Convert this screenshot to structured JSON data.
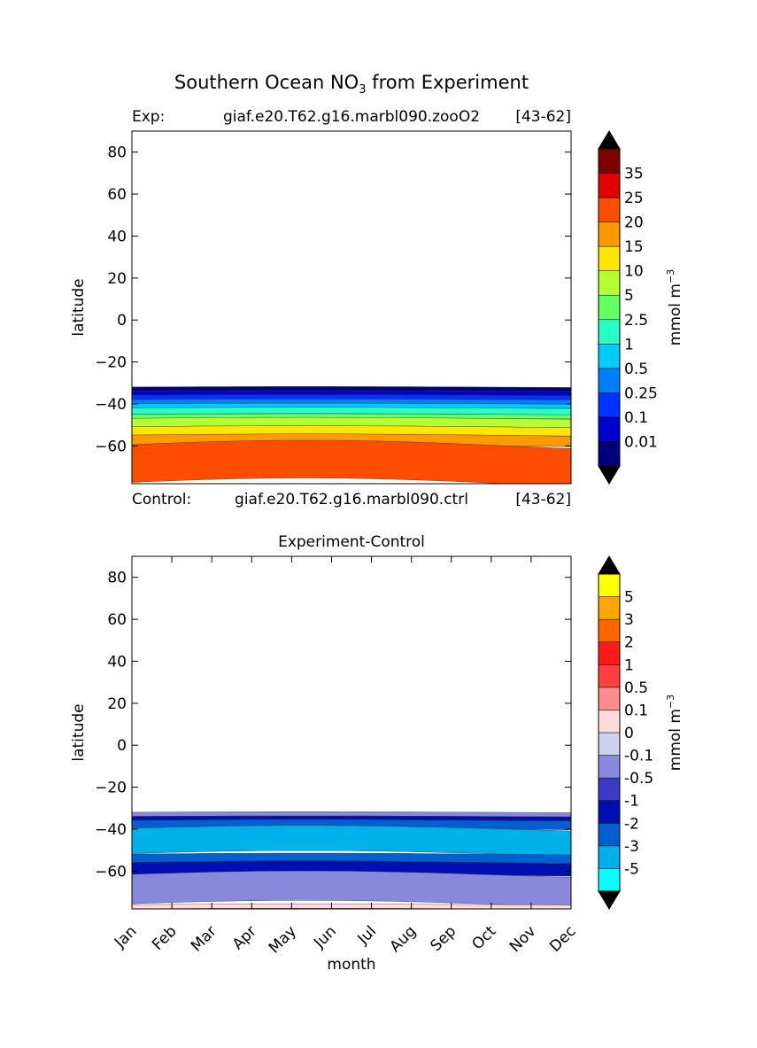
{
  "figure": {
    "title_main": "Southern Ocean NO",
    "title_sub": "3",
    "title_rest": " from Experiment"
  },
  "colors": {
    "exp_palette": [
      "#00007f",
      "#0000cc",
      "#0033ff",
      "#0080ff",
      "#00ccff",
      "#26ffc6",
      "#66ff66",
      "#b3ff33",
      "#ffe600",
      "#ff9900",
      "#ff4d00",
      "#e00000",
      "#7f0000"
    ],
    "diff_palette": [
      "#00ffff",
      "#00b0e8",
      "#0060d0",
      "#0010b0",
      "#3a3ac8",
      "#8888dd",
      "#d0d0f0",
      "#ffdada",
      "#ff8c8c",
      "#ff4040",
      "#ff1a1a",
      "#ff6600",
      "#ffa500",
      "#ffff00"
    ],
    "extend_low": "#000000",
    "extend_high": "#000000"
  },
  "chart_data": [
    {
      "type": "heatmap",
      "name": "experiment",
      "header_left": "Exp:",
      "header_center": "giaf.e20.T62.g16.marbl090.zooO2",
      "header_right": "[43-62]",
      "footer_left": "Control:",
      "footer_center": "giaf.e20.T62.g16.marbl090.ctrl",
      "footer_right": "[43-62]",
      "ylabel": "latitude",
      "ylim": [
        -78,
        90
      ],
      "xlim": [
        0,
        11
      ],
      "yticks": [
        80,
        60,
        40,
        20,
        0,
        -20,
        -40,
        -60
      ],
      "ytick_labels": [
        "80",
        "60",
        "40",
        "20",
        "0",
        "−20",
        "−40",
        "−60"
      ],
      "colorbar_levels": [
        "0.01",
        "0.1",
        "0.25",
        "0.5",
        "1",
        "2.5",
        "5",
        "10",
        "15",
        "20",
        "25",
        "35"
      ],
      "colorbar_label": "mmol m",
      "colorbar_label_sup": "−3",
      "data_extent_lat": [
        -78,
        -32
      ],
      "bands": [
        {
          "level": 0,
          "ymin": -34,
          "ymax": -32
        },
        {
          "level": 1,
          "ymin": -36,
          "ymax": -34
        },
        {
          "level": 2,
          "ymin": -38,
          "ymax": -36
        },
        {
          "level": 3,
          "ymin": -40,
          "ymax": -38
        },
        {
          "level": 4,
          "ymin": -42,
          "ymax": -40
        },
        {
          "level": 5,
          "ymin": -45,
          "ymax": -42
        },
        {
          "level": 6,
          "ymin": -47,
          "ymax": -45
        },
        {
          "level": 7,
          "ymin": -51,
          "ymax": -47
        },
        {
          "level": 8,
          "ymin": -55,
          "ymax": -51
        },
        {
          "level": 9,
          "ymin": -60,
          "ymax": -55
        },
        {
          "level": 10,
          "ymin": -78,
          "ymax": -60
        }
      ]
    },
    {
      "type": "heatmap",
      "name": "difference",
      "title": "Experiment-Control",
      "xlabel": "month",
      "ylabel": "latitude",
      "ylim": [
        -78,
        90
      ],
      "xlim": [
        0,
        11
      ],
      "categories": [
        "Jan",
        "Feb",
        "Mar",
        "Apr",
        "May",
        "Jun",
        "Jul",
        "Aug",
        "Sep",
        "Oct",
        "Nov",
        "Dec"
      ],
      "yticks": [
        80,
        60,
        40,
        20,
        0,
        -20,
        -40,
        -60
      ],
      "ytick_labels": [
        "80",
        "60",
        "40",
        "20",
        "0",
        "−20",
        "−40",
        "−60"
      ],
      "colorbar_levels": [
        "-5",
        "-3",
        "-2",
        "-1",
        "-0.5",
        "-0.1",
        "0",
        "0.1",
        "0.5",
        "1",
        "2",
        "3",
        "5"
      ],
      "colorbar_label": "mmol m",
      "colorbar_label_sup": "−3",
      "data_extent_lat": [
        -78,
        -32
      ],
      "bands": [
        {
          "level": 5,
          "ymin": -34,
          "ymax": -32
        },
        {
          "level": 3,
          "ymin": -36,
          "ymax": -34
        },
        {
          "level": 2,
          "ymin": -40,
          "ymax": -36
        },
        {
          "level": 1,
          "ymin": -52,
          "ymax": -40
        },
        {
          "level": 2,
          "ymin": -56,
          "ymax": -52
        },
        {
          "level": 3,
          "ymin": -62,
          "ymax": -56
        },
        {
          "level": 5,
          "ymin": -76,
          "ymax": -62
        },
        {
          "level": 7,
          "ymin": -78,
          "ymax": -76
        }
      ]
    }
  ]
}
